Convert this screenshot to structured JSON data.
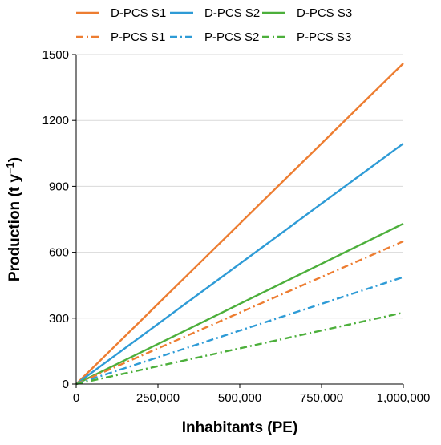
{
  "chart_data": {
    "type": "line",
    "xlabel": "Inhabitants (PE)",
    "ylabel": "Production (t y",
    "ylabel_sup": "−1",
    "ylabel_close": ")",
    "xlim": [
      0,
      1000000
    ],
    "ylim": [
      0,
      1500
    ],
    "x_ticks": [
      0,
      250000,
      500000,
      750000,
      1000000
    ],
    "x_tick_labels": [
      "0",
      "250,000",
      "500,000",
      "750,000",
      "1,000,000"
    ],
    "y_ticks": [
      0,
      300,
      600,
      900,
      1200,
      1500
    ],
    "y_tick_labels": [
      "0",
      "300",
      "600",
      "900",
      "1200",
      "1500"
    ],
    "grid": "horizontal",
    "legend_position": "top",
    "series": [
      {
        "name": "D-PCS S1",
        "color": "#ED7D31",
        "dash": "solid",
        "x": [
          0,
          1000000
        ],
        "y": [
          0,
          1460
        ]
      },
      {
        "name": "D-PCS S2",
        "color": "#2E9BD6",
        "dash": "solid",
        "x": [
          0,
          1000000
        ],
        "y": [
          0,
          1095
        ]
      },
      {
        "name": "D-PCS S3",
        "color": "#4CAF3B",
        "dash": "solid",
        "x": [
          0,
          1000000
        ],
        "y": [
          0,
          730
        ]
      },
      {
        "name": "P-PCS S1",
        "color": "#ED7D31",
        "dash": "dashdot",
        "x": [
          0,
          1000000
        ],
        "y": [
          0,
          650
        ]
      },
      {
        "name": "P-PCS S2",
        "color": "#2E9BD6",
        "dash": "dashdot",
        "x": [
          0,
          1000000
        ],
        "y": [
          0,
          487
        ]
      },
      {
        "name": "P-PCS S3",
        "color": "#4CAF3B",
        "dash": "dashdot",
        "x": [
          0,
          1000000
        ],
        "y": [
          0,
          325
        ]
      }
    ]
  }
}
